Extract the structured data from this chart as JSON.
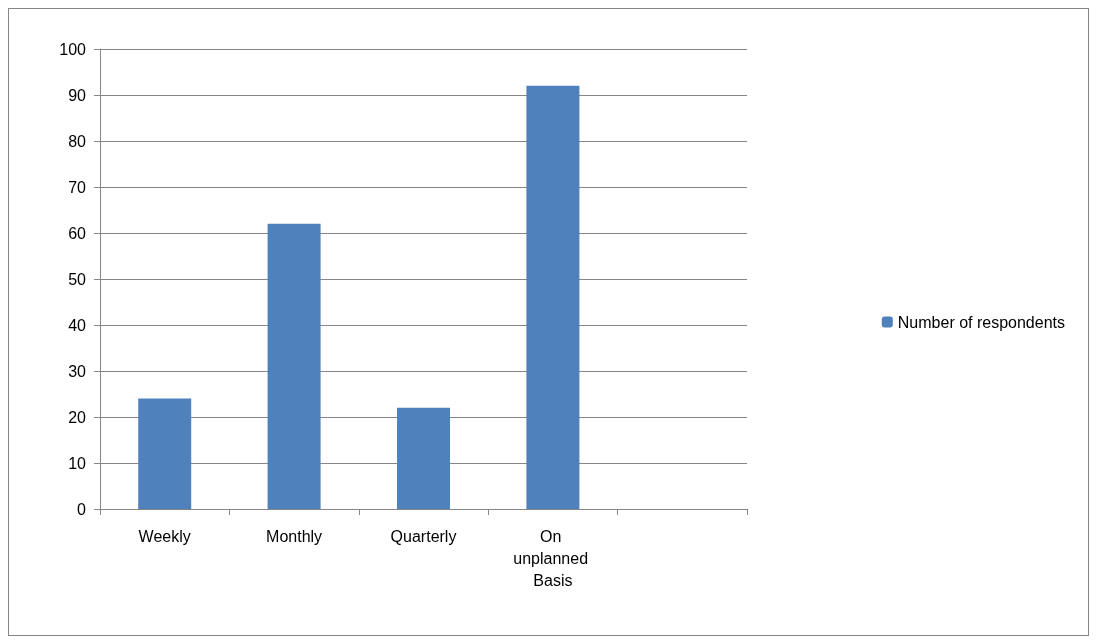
{
  "chart_data": {
    "type": "bar",
    "categories": [
      "Weekly",
      "Monthly",
      "Quarterly",
      "On unplanned Basis",
      null
    ],
    "series": [
      {
        "name": "Number of respondents",
        "color": "#4f81bd",
        "values": [
          24,
          62,
          22,
          92,
          null
        ]
      }
    ],
    "ylim": [
      0,
      100
    ],
    "yticks": [
      0,
      10,
      20,
      30,
      40,
      50,
      60,
      70,
      80,
      90,
      100
    ],
    "grid": "y",
    "legend": "right"
  }
}
